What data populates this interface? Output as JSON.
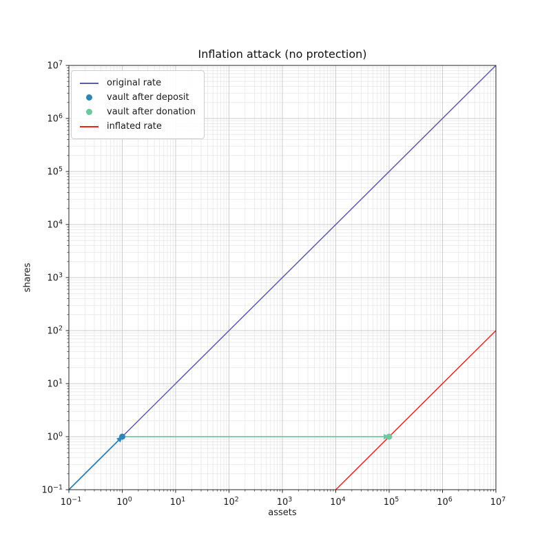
{
  "figure": {
    "background": "#ffffff"
  },
  "chart_data": {
    "type": "line",
    "title": "Inflation attack (no protection)",
    "xlabel": "assets",
    "ylabel": "shares",
    "x_scale": "log",
    "y_scale": "log",
    "xlim": [
      0.1,
      10000000
    ],
    "ylim": [
      0.1,
      10000000
    ],
    "x_tick_exponents": [
      -1,
      0,
      1,
      2,
      3,
      4,
      5,
      6,
      7
    ],
    "y_tick_exponents": [
      -1,
      0,
      1,
      2,
      3,
      4,
      5,
      6,
      7
    ],
    "tick_base": "10",
    "grid": {
      "visible": true,
      "major_color": "#cccccc",
      "minor_color": "#e7e7e7"
    },
    "axis_color": "#262626",
    "series": [
      {
        "name": "original rate",
        "type": "line",
        "color": "#5e5aab",
        "linewidth": 1.5,
        "points": [
          [
            0.1,
            0.1
          ],
          [
            10000000,
            10000000
          ]
        ]
      },
      {
        "name": "inflated rate",
        "type": "line",
        "color": "#f22118",
        "linewidth": 1.5,
        "points": [
          [
            10000,
            0.1
          ],
          [
            10000000,
            100
          ]
        ]
      }
    ],
    "markers": [
      {
        "name": "vault after deposit",
        "color": "#2e86b5",
        "x": 1,
        "y": 1,
        "radius": 4.5
      },
      {
        "name": "vault after donation",
        "color": "#70c6a0",
        "x": 100000,
        "y": 1,
        "radius": 4.5
      }
    ],
    "arrows": [
      {
        "name": "deposit-arrow",
        "color": "#2e86b5",
        "from": [
          0.1,
          0.1
        ],
        "to": [
          1,
          1
        ],
        "linewidth": 1.8
      },
      {
        "name": "donation-arrow",
        "color": "#70c6a0",
        "from": [
          1,
          1
        ],
        "to": [
          100000,
          1
        ],
        "linewidth": 1.8
      }
    ],
    "legend": {
      "position": "upper-left",
      "entries": [
        {
          "label": "original rate",
          "swatch": "line",
          "color": "#5e5aab"
        },
        {
          "label": "vault after deposit",
          "swatch": "dot",
          "color": "#2e86b5"
        },
        {
          "label": "vault after donation",
          "swatch": "dot",
          "color": "#70c6a0"
        },
        {
          "label": "inflated rate",
          "swatch": "line",
          "color": "#f22118"
        }
      ]
    }
  }
}
